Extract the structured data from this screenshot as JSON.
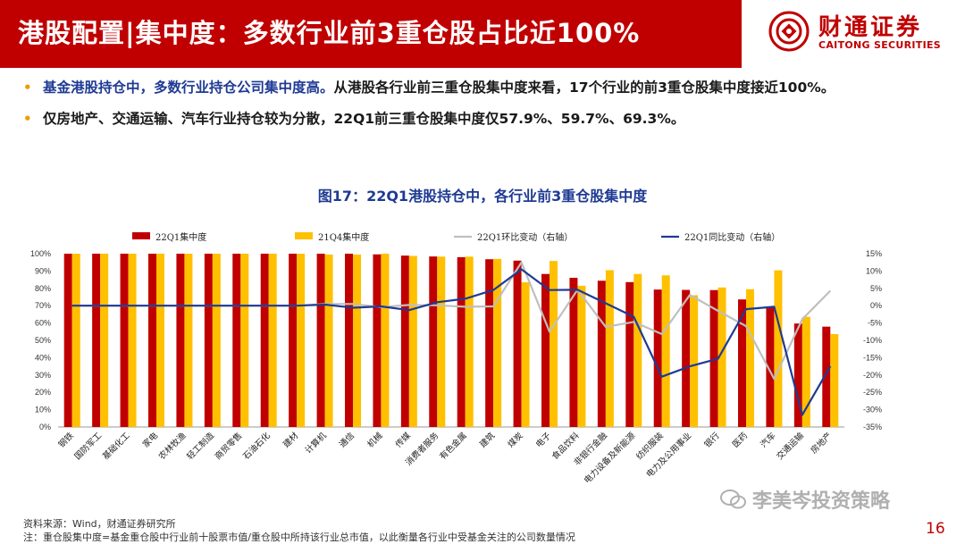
{
  "header": {
    "title": "港股配置|集中度：多数行业前3重仓股占比近100%",
    "logo_cn": "财通证券",
    "logo_en": "CAITONG SECURITIES"
  },
  "bullets": [
    {
      "highlight": "基金港股持仓中，多数行业持仓公司集中度高。",
      "text": "从港股各行业前三重仓股集中度来看，17个行业的前3重仓股集中度接近100%。"
    },
    {
      "highlight": "",
      "text": "仅房地产、交通运输、汽车行业持仓较为分散，22Q1前三重仓股集中度仅57.9%、59.7%、69.3%。"
    }
  ],
  "chart_title": "图17：22Q1港股持仓中，各行业前3重仓股集中度",
  "chart_data": {
    "type": "bar",
    "categories": [
      "钢铁",
      "国防军工",
      "基础化工",
      "家电",
      "农林牧渔",
      "轻工制造",
      "商贸零售",
      "石油石化",
      "建材",
      "计算机",
      "通信",
      "机械",
      "传媒",
      "消费者服务",
      "有色金属",
      "建筑",
      "煤炭",
      "电子",
      "食品饮料",
      "非银行金融",
      "电力设备及新能源",
      "纺织服装",
      "电力及公用事业",
      "银行",
      "医药",
      "汽车",
      "交通运输",
      "房地产"
    ],
    "series": [
      {
        "name": "22Q1集中度",
        "axis": "left",
        "kind": "bar",
        "color": "#c00000",
        "values": [
          100,
          100,
          100,
          100,
          100,
          100,
          100,
          100,
          100,
          100,
          100,
          99.6,
          98.9,
          98.4,
          98.0,
          96.8,
          96.0,
          88.3,
          86.1,
          84.4,
          83.6,
          79.3,
          79.1,
          79.0,
          73.6,
          69.3,
          59.7,
          57.9
        ]
      },
      {
        "name": "21Q4集中度",
        "axis": "left",
        "kind": "bar",
        "color": "#ffc000",
        "values": [
          100,
          100,
          100,
          100,
          100,
          100,
          100,
          100,
          100,
          99.5,
          99.5,
          100,
          98.7,
          98.3,
          98.3,
          97.0,
          83.5,
          95.8,
          81.5,
          90.5,
          88.3,
          87.5,
          76.0,
          80.5,
          79.5,
          90.4,
          63.6,
          53.6
        ]
      },
      {
        "name": "22Q1环比变动（右轴）",
        "axis": "right",
        "kind": "line",
        "color": "#bfbfbf",
        "values": [
          0,
          0,
          0,
          0,
          0,
          0,
          0,
          0,
          0,
          0.5,
          0.5,
          -0.4,
          0.2,
          0.1,
          -0.3,
          -0.2,
          12.5,
          -7.5,
          4.6,
          -6.1,
          -4.7,
          -8.2,
          3.1,
          -1.5,
          -5.9,
          -21.1,
          -3.9,
          4.3
        ]
      },
      {
        "name": "22Q1同比变动（右轴）",
        "axis": "right",
        "kind": "line",
        "color": "#1f3a93",
        "values": [
          0,
          0,
          0,
          0,
          0,
          0,
          0,
          0,
          0,
          0.3,
          -0.6,
          -0.2,
          -1.3,
          1.0,
          2.0,
          4.5,
          10.5,
          4.5,
          4.6,
          0.7,
          -3.2,
          -20.5,
          -17.5,
          -15.3,
          -1.0,
          -0.3,
          -31.5,
          -17.5
        ]
      }
    ],
    "y_left": {
      "min": 0,
      "max": 100,
      "step": 10,
      "suffix": "%"
    },
    "y_right": {
      "min": -35,
      "max": 15,
      "step": 5,
      "suffix": "%"
    },
    "legend_position": "top",
    "grid": false
  },
  "footer": {
    "source": "资料来源：Wind，财通证券研究所",
    "note": "注：重仓股集中度=基金重仓股中行业前十股票市值/重仓股中所持该行业总市值，以此衡量各行业中受基金关注的公司数量情况"
  },
  "watermark": "李美岑投资策略",
  "page_number": "16",
  "colors": {
    "brand_red": "#c00000",
    "accent_blue": "#1f3a93",
    "bullet_orange": "#e8a000"
  }
}
